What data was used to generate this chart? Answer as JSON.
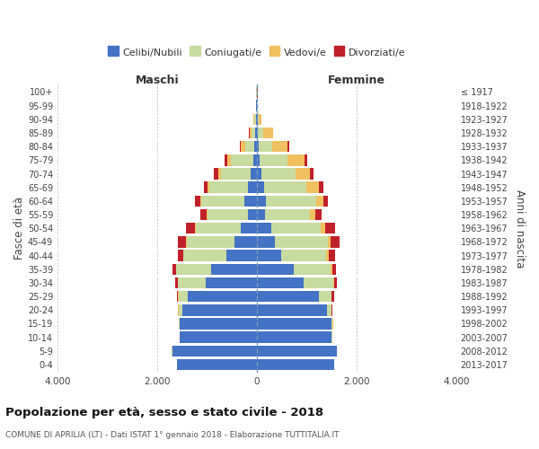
{
  "age_groups": [
    "0-4",
    "5-9",
    "10-14",
    "15-19",
    "20-24",
    "25-29",
    "30-34",
    "35-39",
    "40-44",
    "45-49",
    "50-54",
    "55-59",
    "60-64",
    "65-69",
    "70-74",
    "75-79",
    "80-84",
    "85-89",
    "90-94",
    "95-99",
    "100+"
  ],
  "birth_years": [
    "2013-2017",
    "2008-2012",
    "2003-2007",
    "1998-2002",
    "1993-1997",
    "1988-1992",
    "1983-1987",
    "1978-1982",
    "1973-1977",
    "1968-1972",
    "1963-1967",
    "1958-1962",
    "1953-1957",
    "1948-1952",
    "1943-1947",
    "1938-1942",
    "1933-1937",
    "1928-1932",
    "1923-1927",
    "1918-1922",
    "≤ 1917"
  ],
  "maschi_celibi": [
    1600,
    1700,
    1550,
    1550,
    1500,
    1380,
    1020,
    920,
    610,
    450,
    320,
    180,
    250,
    185,
    120,
    75,
    45,
    28,
    18,
    8,
    4
  ],
  "maschi_coniugati": [
    5,
    5,
    5,
    18,
    75,
    195,
    560,
    700,
    860,
    960,
    910,
    810,
    860,
    760,
    600,
    450,
    195,
    75,
    28,
    8,
    4
  ],
  "maschi_vedovi": [
    0,
    0,
    0,
    2,
    4,
    5,
    5,
    5,
    10,
    18,
    18,
    18,
    28,
    48,
    58,
    68,
    78,
    48,
    18,
    5,
    2
  ],
  "maschi_divorziati": [
    0,
    0,
    2,
    5,
    8,
    28,
    48,
    68,
    98,
    148,
    178,
    118,
    98,
    78,
    78,
    48,
    18,
    8,
    4,
    2,
    1
  ],
  "femmine_celibi": [
    1550,
    1600,
    1500,
    1500,
    1400,
    1250,
    940,
    740,
    490,
    370,
    290,
    170,
    190,
    145,
    85,
    58,
    38,
    24,
    14,
    8,
    4
  ],
  "femmine_coniugate": [
    5,
    5,
    8,
    24,
    98,
    248,
    598,
    748,
    898,
    1048,
    998,
    898,
    998,
    848,
    698,
    548,
    278,
    98,
    24,
    8,
    4
  ],
  "femmine_vedove": [
    0,
    0,
    2,
    4,
    5,
    8,
    18,
    28,
    48,
    58,
    78,
    98,
    148,
    248,
    278,
    348,
    298,
    198,
    58,
    8,
    2
  ],
  "femmine_divorziate": [
    0,
    0,
    2,
    5,
    14,
    38,
    58,
    78,
    128,
    178,
    198,
    128,
    98,
    88,
    78,
    58,
    28,
    14,
    4,
    2,
    1
  ],
  "colors": {
    "celibi": "#4472C4",
    "coniugati": "#C8DBA0",
    "vedovi": "#F0C060",
    "divorziati": "#C0202A"
  },
  "xlim": 4000,
  "xticks": [
    -4000,
    -2000,
    0,
    2000,
    4000
  ],
  "xticklabels": [
    "4.000",
    "2.000",
    "0",
    "2.000",
    "4.000"
  ],
  "title_main": "Popolazione per età, sesso e stato civile - 2018",
  "subtitle": "COMUNE DI APRILIA (LT) - Dati ISTAT 1° gennaio 2018 - Elaborazione TUTTITALIA.IT",
  "ylabel_left": "Fasce di età",
  "ylabel_right": "Anni di nascita",
  "maschi_label": "Maschi",
  "femmine_label": "Femmine",
  "legend_labels": [
    "Celibi/Nubili",
    "Coniugati/e",
    "Vedovi/e",
    "Divorziati/e"
  ],
  "bg_color": "#ffffff",
  "grid_color": "#bbbbbb"
}
